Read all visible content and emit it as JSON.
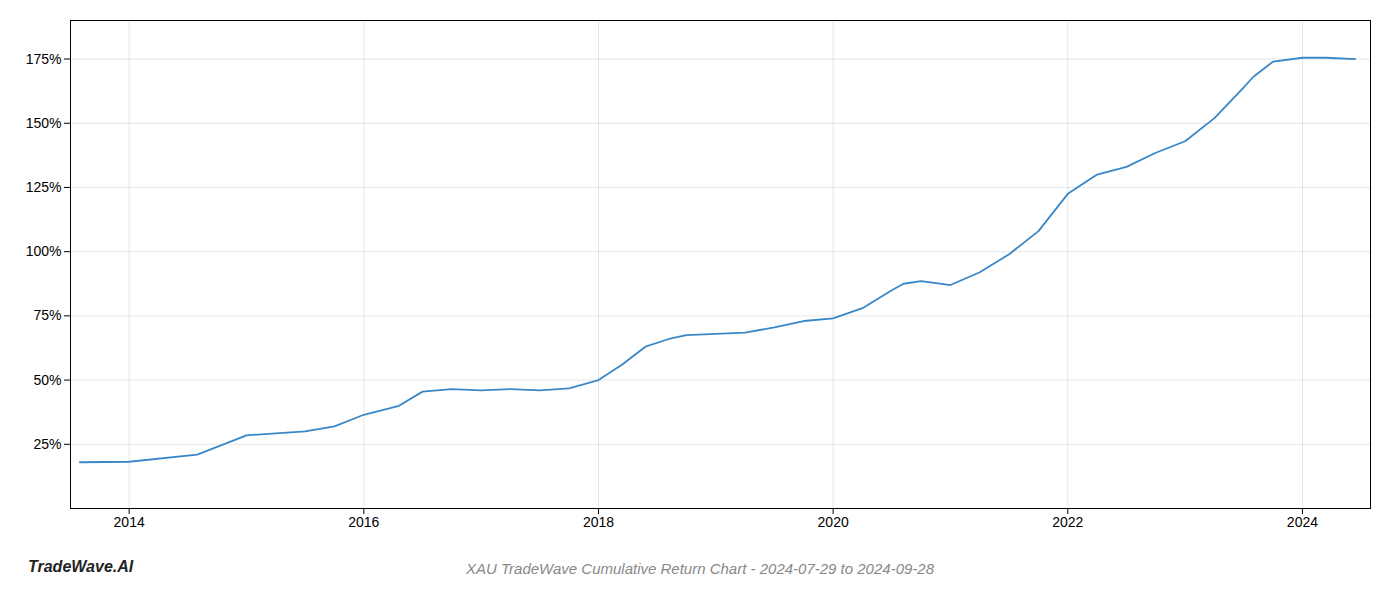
{
  "chart_data": {
    "type": "line",
    "title": "XAU TradeWave Cumulative Return Chart - 2024-07-29 to 2024-09-28",
    "annotations": [
      "TradeWave.AI"
    ],
    "x": [
      2013.58,
      2014.0,
      2014.58,
      2015.0,
      2015.5,
      2015.75,
      2016.0,
      2016.3,
      2016.5,
      2016.75,
      2017.0,
      2017.25,
      2017.5,
      2017.75,
      2018.0,
      2018.2,
      2018.4,
      2018.6,
      2018.75,
      2019.0,
      2019.25,
      2019.5,
      2019.75,
      2020.0,
      2020.25,
      2020.5,
      2020.6,
      2020.75,
      2021.0,
      2021.25,
      2021.5,
      2021.75,
      2022.0,
      2022.25,
      2022.5,
      2022.75,
      2023.0,
      2023.25,
      2023.5,
      2023.58,
      2023.75,
      2024.0,
      2024.2,
      2024.45
    ],
    "values": [
      18.0,
      18.2,
      21.0,
      28.5,
      30.0,
      32.0,
      36.5,
      40.0,
      45.5,
      46.5,
      46.0,
      46.5,
      46.0,
      46.8,
      50.0,
      56.0,
      63.0,
      66.0,
      67.5,
      68.0,
      68.5,
      70.5,
      73.0,
      74.0,
      78.0,
      85.0,
      87.5,
      88.5,
      87.0,
      92.0,
      99.0,
      108.0,
      122.5,
      130.0,
      133.0,
      138.5,
      143.0,
      152.0,
      164.0,
      168.0,
      174.0,
      175.5,
      175.5,
      175.0
    ],
    "color": "#3a87c8",
    "xlim": [
      2013.5,
      2024.58
    ],
    "ylim": [
      0,
      190
    ],
    "xticks": [
      2014,
      2016,
      2018,
      2020,
      2022,
      2024
    ],
    "yticks": [
      {
        "value": 25,
        "label": "25%"
      },
      {
        "value": 50,
        "label": "50%"
      },
      {
        "value": 75,
        "label": "75%"
      },
      {
        "value": 100,
        "label": "100%"
      },
      {
        "value": 125,
        "label": "125%"
      },
      {
        "value": 150,
        "label": "150%"
      },
      {
        "value": 175,
        "label": "175%"
      }
    ],
    "grid": true
  }
}
